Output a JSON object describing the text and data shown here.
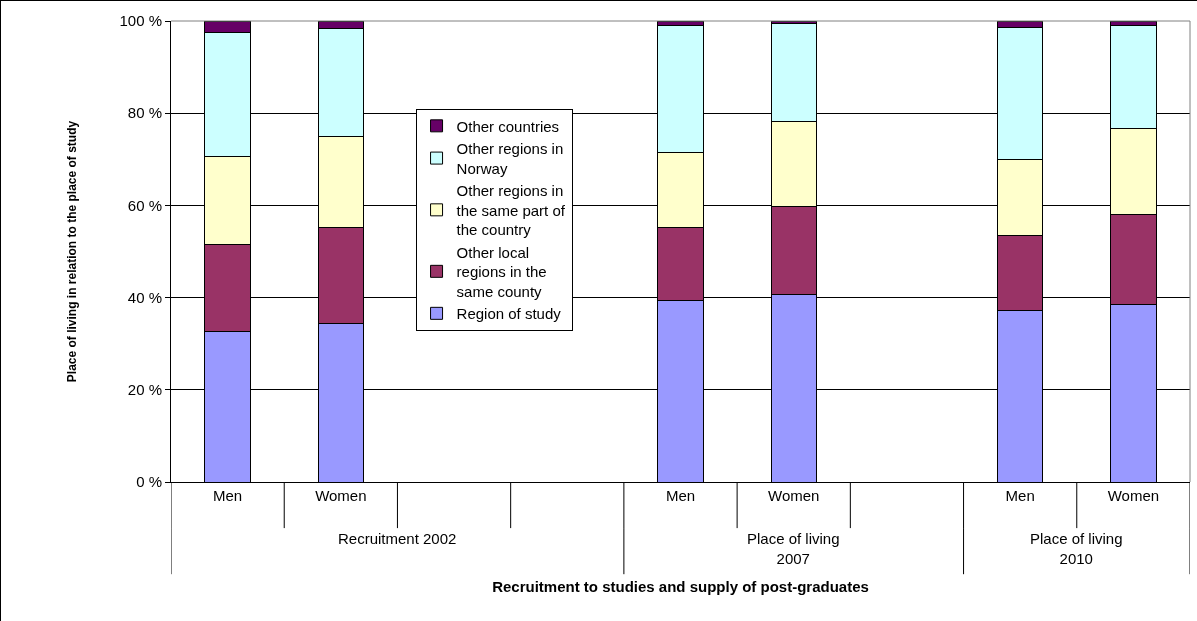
{
  "chart_data": {
    "type": "bar",
    "stacked": true,
    "xlabel": "Recruitment to studies and supply of post-graduates",
    "ylabel": "Place of living in relation to the place of study",
    "categories": [
      "Men",
      "Women",
      null,
      null,
      "Men",
      "Women",
      null,
      "Men",
      "Women"
    ],
    "series": [
      {
        "name": "Region of study",
        "color": "#9999ff",
        "values": [
          32.6,
          34.3,
          null,
          null,
          39.3,
          40.7,
          null,
          37.3,
          38.6
        ]
      },
      {
        "name": "Other local regions in the same county",
        "color": "#993366",
        "values": [
          19.0,
          20.9,
          null,
          null,
          15.9,
          19.1,
          null,
          16.1,
          19.4
        ]
      },
      {
        "name": "Other regions in the same part of the country",
        "color": "#ffffcc",
        "values": [
          19.0,
          19.8,
          null,
          null,
          16.3,
          18.3,
          null,
          16.5,
          18.6
        ]
      },
      {
        "name": "Other regions in Norway",
        "color": "#ccffff",
        "values": [
          27.0,
          23.3,
          null,
          null,
          27.6,
          21.4,
          null,
          28.7,
          22.5
        ]
      },
      {
        "name": "Other countries",
        "color": "#660066",
        "values": [
          2.4,
          1.7,
          null,
          null,
          0.9,
          0.5,
          null,
          1.4,
          0.9
        ]
      }
    ],
    "ylim": [
      0,
      100
    ],
    "yticks": [
      {
        "value": 0,
        "label": "0 %"
      },
      {
        "value": 20,
        "label": "20 %"
      },
      {
        "value": 40,
        "label": "40 %"
      },
      {
        "value": 60,
        "label": "60 %"
      },
      {
        "value": 80,
        "label": "80 %"
      },
      {
        "value": 100,
        "label": "100 %"
      }
    ],
    "grid": "y",
    "legend": "center",
    "annotations": [
      "Recruitment 2002",
      "Place of living 2007",
      "Place of living 2010"
    ]
  }
}
